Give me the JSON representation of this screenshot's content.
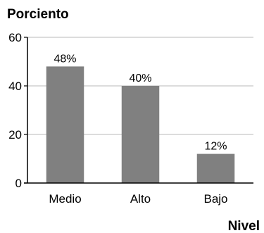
{
  "chart_data": {
    "type": "bar",
    "ylabel": "Porciento",
    "xlabel": "Nivel",
    "categories": [
      "Medio",
      "Alto",
      "Bajo"
    ],
    "values": [
      48,
      40,
      12
    ],
    "data_labels": [
      "48%",
      "40%",
      "12%"
    ],
    "ylim": [
      0,
      60
    ],
    "yticks": [
      0,
      20,
      40,
      60
    ],
    "grid": true,
    "colors": {
      "bar": "#808080",
      "grid": "#c8c8c8",
      "axis": "#000000"
    }
  }
}
